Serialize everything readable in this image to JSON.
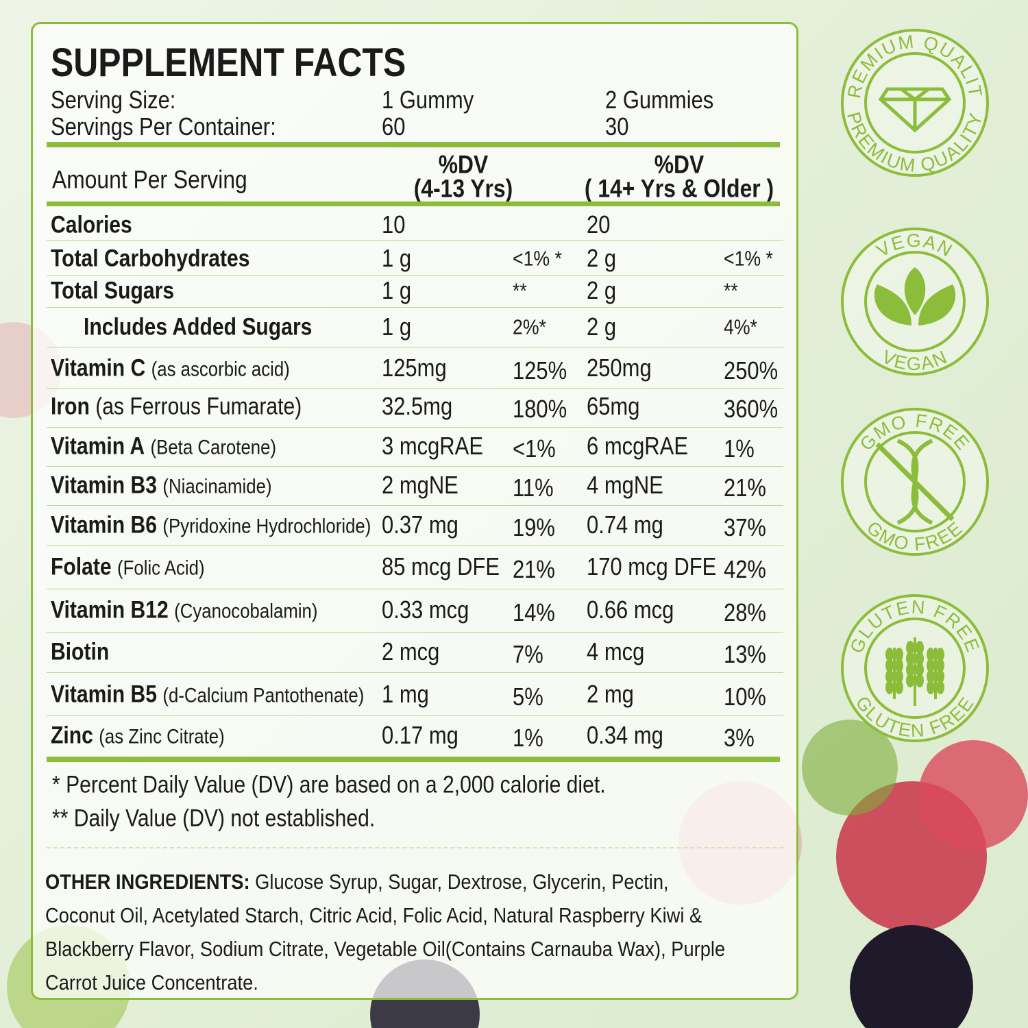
{
  "header": {
    "title": "SUPPLEMENT FACTS"
  },
  "serving": [
    {
      "label": "Serving Size:",
      "col1": "1 Gummy",
      "col2": "2 Gummies"
    },
    {
      "label": "Servings Per Container:",
      "col1": "60",
      "col2": "30"
    }
  ],
  "columns": {
    "amount": "Amount Per Serving",
    "dv1": [
      "%DV",
      "(4-13 Yrs)"
    ],
    "dv2": [
      "%DV",
      "( 14+ Yrs & Older )"
    ]
  },
  "table": {
    "rows": [
      {
        "name": "Calories",
        "amt1": "10",
        "amt2": "20"
      },
      {
        "name": "Total Carbohydrates",
        "amt1": "1 g",
        "dv1": "<1% *",
        "amt2": "2 g",
        "dv2": "<1% *"
      },
      {
        "name": "Total Sugars",
        "amt1": "1 g",
        "dv1": "**",
        "amt2": "2 g",
        "dv2": "**"
      },
      {
        "name": "Includes Added Sugars",
        "amt1": "1 g",
        "dv1": "2%*",
        "amt2": "2 g",
        "dv2": "4%*"
      },
      {
        "name": "Vitamin C",
        "note": "(as ascorbic acid)",
        "amt1": "125mg",
        "dv1": "125%",
        "amt2": "250mg",
        "dv2": "250%"
      },
      {
        "name": "Iron",
        "note": "(as Ferrous Fumarate)",
        "amt1": "32.5mg",
        "dv1": "180%",
        "amt2": "65mg",
        "dv2": "360%"
      },
      {
        "name": "Vitamin A",
        "note": "(Beta Carotene)",
        "amt1": "3 mcgRAE",
        "dv1": "<1%",
        "amt2": "6 mcgRAE",
        "dv2": "1%"
      },
      {
        "name": "Vitamin B3",
        "note": "(Niacinamide)",
        "amt1": "2 mgNE",
        "dv1": "11%",
        "amt2": "4 mgNE",
        "dv2": "21%"
      },
      {
        "name": "Vitamin B6",
        "note": "(Pyridoxine Hydrochloride)",
        "amt1": "0.37 mg",
        "dv1": "19%",
        "amt2": "0.74 mg",
        "dv2": "37%"
      },
      {
        "name": "Folate",
        "note": "(Folic Acid)",
        "amt1": "85 mcg DFE",
        "dv1": "21%",
        "amt2": "170 mcg DFE",
        "dv2": "42%"
      },
      {
        "name": "Vitamin B12",
        "note": "(Cyanocobalamin)",
        "amt1": "0.33 mcg",
        "dv1": "14%",
        "amt2": "0.66 mcg",
        "dv2": "28%"
      },
      {
        "name": "Biotin",
        "amt1": "2 mcg",
        "dv1": "7%",
        "amt2": "4 mcg",
        "dv2": "13%"
      },
      {
        "name": "Vitamin B5",
        "note": "(d-Calcium Pantothenate)",
        "amt1": "1 mg",
        "dv1": "5%",
        "amt2": "2 mg",
        "dv2": "10%"
      },
      {
        "name": "Zinc",
        "note": "(as Zinc Citrate)",
        "amt1": "0.17 mg",
        "dv1": "1%",
        "amt2": "0.34 mg",
        "dv2": "3%"
      }
    ]
  },
  "footnotes": [
    "* Percent Daily Value (DV) are based on a 2,000 calorie diet.",
    "** Daily Value (DV) not established."
  ],
  "ingredients": {
    "label": "OTHER INGREDIENTS:",
    "text": "Glucose Syrup, Sugar, Dextrose, Glycerin, Pectin, Coconut Oil, Acetylated Starch, Citric Acid, Folic Acid, Natural Raspberry Kiwi & Blackberry Flavor, Sodium Citrate, Vegetable Oil(Contains Carnauba Wax), Purple Carrot Juice Concentrate."
  },
  "badges": [
    {
      "top": "PREMIUM QUALITY",
      "bottom": "PREMIUM QUALITY"
    },
    {
      "top": "VEGAN",
      "bottom": "VEGAN"
    },
    {
      "top": "GMO FREE",
      "bottom": "GMO FREE"
    },
    {
      "top": "GLUTEN FREE",
      "bottom": "GLUTEN FREE"
    }
  ]
}
